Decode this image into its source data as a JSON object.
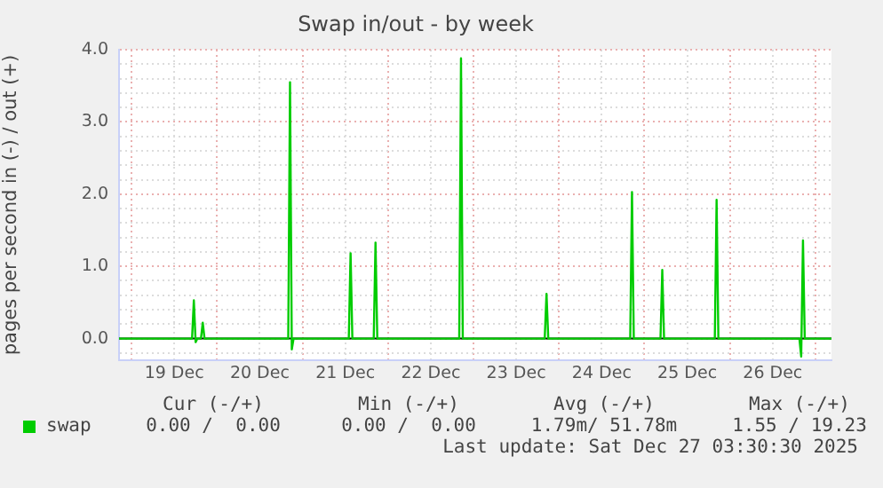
{
  "chart_data": {
    "type": "line",
    "title": "Swap in/out - by week",
    "ylabel": "pages per second in (-) / out (+)",
    "x": [
      "2025-12-18T20:30",
      "2025-12-19T17:00",
      "2025-12-19T17:30",
      "2025-12-19T18:00",
      "2025-12-19T18:30",
      "2025-12-19T19:30",
      "2025-12-19T20:00",
      "2025-12-19T20:30",
      "2025-12-20T20:00",
      "2025-12-20T20:30",
      "2025-12-20T21:00",
      "2025-12-20T21:30",
      "2025-12-21T13:00",
      "2025-12-21T13:30",
      "2025-12-21T14:00",
      "2025-12-21T20:00",
      "2025-12-21T20:30",
      "2025-12-21T21:00",
      "2025-12-22T20:00",
      "2025-12-22T20:30",
      "2025-12-22T21:00",
      "2025-12-23T20:00",
      "2025-12-23T20:30",
      "2025-12-23T21:00",
      "2025-12-24T20:00",
      "2025-12-24T20:30",
      "2025-12-24T21:00",
      "2025-12-25T04:30",
      "2025-12-25T05:00",
      "2025-12-25T05:30",
      "2025-12-25T19:45",
      "2025-12-25T20:15",
      "2025-12-25T20:45",
      "2025-12-26T19:30",
      "2025-12-26T20:00",
      "2025-12-26T20:30",
      "2025-12-26T21:00",
      "2025-12-27T04:30"
    ],
    "series": [
      {
        "name": "swap",
        "color": "#00cc00",
        "values": [
          0,
          0,
          0.53,
          -0.05,
          0,
          0,
          0.22,
          0,
          0,
          3.55,
          -0.15,
          0,
          0,
          1.18,
          0,
          0,
          1.33,
          0,
          0,
          3.88,
          0,
          0,
          0.62,
          0,
          0,
          2.03,
          0,
          0,
          0.95,
          0,
          0,
          1.92,
          0,
          0,
          -0.25,
          1.36,
          0,
          0
        ]
      }
    ],
    "xlim": [
      "2025-12-18T20:30",
      "2025-12-27T04:30"
    ],
    "xticks": [
      {
        "value": "2025-12-19T00:00",
        "label": null
      },
      {
        "value": "2025-12-19T12:00",
        "label": "19 Dec"
      },
      {
        "value": "2025-12-20T00:00",
        "label": null
      },
      {
        "value": "2025-12-20T12:00",
        "label": "20 Dec"
      },
      {
        "value": "2025-12-21T00:00",
        "label": null
      },
      {
        "value": "2025-12-21T12:00",
        "label": "21 Dec"
      },
      {
        "value": "2025-12-22T00:00",
        "label": null
      },
      {
        "value": "2025-12-22T12:00",
        "label": "22 Dec"
      },
      {
        "value": "2025-12-23T00:00",
        "label": null
      },
      {
        "value": "2025-12-23T12:00",
        "label": "23 Dec"
      },
      {
        "value": "2025-12-24T00:00",
        "label": null
      },
      {
        "value": "2025-12-24T12:00",
        "label": "24 Dec"
      },
      {
        "value": "2025-12-25T00:00",
        "label": null
      },
      {
        "value": "2025-12-25T12:00",
        "label": "25 Dec"
      },
      {
        "value": "2025-12-26T00:00",
        "label": null
      },
      {
        "value": "2025-12-26T12:00",
        "label": "26 Dec"
      },
      {
        "value": "2025-12-27T00:00",
        "label": null
      }
    ],
    "ylim": [
      -0.3,
      4.0
    ],
    "yticks": [
      {
        "value": -0.2,
        "label": null
      },
      {
        "value": 0,
        "label": "0.0"
      },
      {
        "value": 0.2,
        "label": null
      },
      {
        "value": 0.4,
        "label": null
      },
      {
        "value": 0.6,
        "label": null
      },
      {
        "value": 0.8,
        "label": null
      },
      {
        "value": 1,
        "label": "1.0"
      },
      {
        "value": 1.2,
        "label": null
      },
      {
        "value": 1.4,
        "label": null
      },
      {
        "value": 1.6,
        "label": null
      },
      {
        "value": 1.8,
        "label": null
      },
      {
        "value": 2,
        "label": "2.0"
      },
      {
        "value": 2.2,
        "label": null
      },
      {
        "value": 2.4,
        "label": null
      },
      {
        "value": 2.6,
        "label": null
      },
      {
        "value": 2.8,
        "label": null
      },
      {
        "value": 3,
        "label": "3.0"
      },
      {
        "value": 3.2,
        "label": null
      },
      {
        "value": 3.4,
        "label": null
      },
      {
        "value": 3.6,
        "label": null
      },
      {
        "value": 3.8,
        "label": null
      },
      {
        "value": 4,
        "label": "4.0"
      }
    ],
    "ref_lines": [
      {
        "axis": "y",
        "value": 0,
        "color": "#000000"
      }
    ],
    "grid": true,
    "legend": "bottom",
    "marker": "none",
    "line_style": "solid",
    "annotations": [
      "Cur (-/+)",
      "Min (-/+)",
      "Avg (-/+)",
      "Max (-/+)",
      "0.00 /  0.00",
      "0.00 /  0.00",
      "1.79m/ 51.78m",
      "1.55 / 19.23",
      "Last update: Sat Dec 27 03:30:30 2025"
    ]
  }
}
